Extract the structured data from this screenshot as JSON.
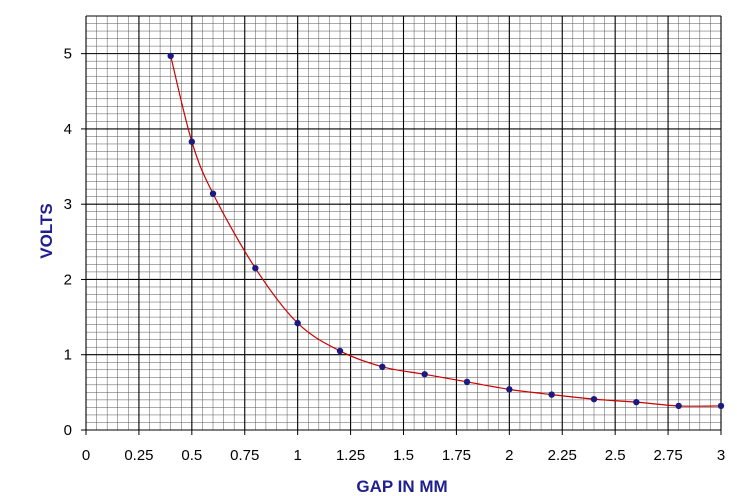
{
  "chart_data": {
    "type": "line",
    "title": "",
    "xlabel": "GAP IN MM",
    "ylabel": "VOLTS",
    "xlim": [
      0,
      3
    ],
    "ylim": [
      0,
      5.5
    ],
    "x_ticks": [
      "0",
      "0.25",
      "0.5",
      "0.75",
      "1",
      "1.25",
      "1.5",
      "1.75",
      "2",
      "2.25",
      "2.5",
      "2.75",
      "3"
    ],
    "y_ticks": [
      "0",
      "1",
      "2",
      "3",
      "4",
      "5"
    ],
    "grid": true,
    "legend": "none",
    "colors": {
      "line": "#cc0000",
      "marker": "#1a1a80",
      "axis_title": "#1f1f8f",
      "grid_major": "#000000",
      "grid_minor": "#555555"
    },
    "series": [
      {
        "x": [
          0.4,
          0.5,
          0.6,
          0.8,
          1.0,
          1.2,
          1.4,
          1.6,
          1.8,
          2.0,
          2.2,
          2.4,
          2.6,
          2.8,
          3.0
        ],
        "y": [
          4.97,
          3.83,
          3.14,
          2.15,
          1.42,
          1.05,
          0.84,
          0.74,
          0.64,
          0.54,
          0.47,
          0.41,
          0.37,
          0.32,
          0.32
        ]
      }
    ]
  }
}
